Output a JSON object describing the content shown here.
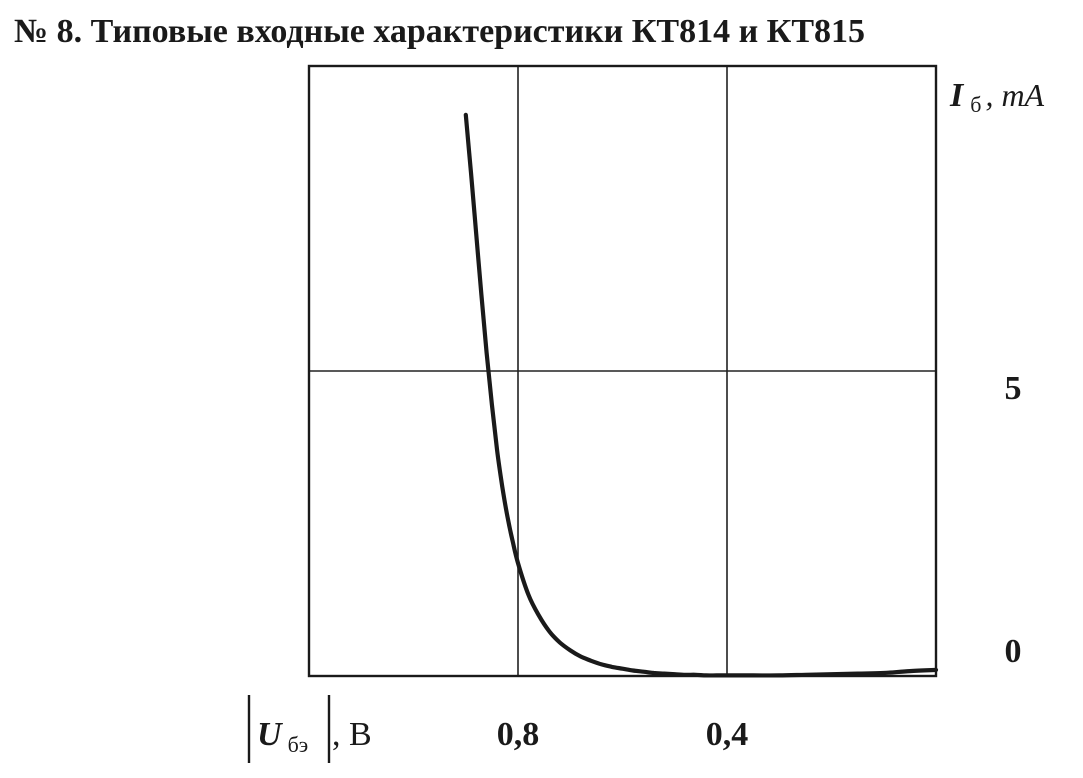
{
  "title": "№ 8.  Типовые входные характеристики КТ814 и КТ815",
  "chart_data": {
    "type": "line",
    "title": "№ 8.  Типовые входные характеристики КТ814 и КТ815",
    "xlabel": {
      "symbol": "U",
      "subscript": "бэ",
      "unit": ", В"
    },
    "ylabel": {
      "symbol": "I",
      "subscript": "б",
      "unit": ", mA"
    },
    "x_reversed": true,
    "xlim": [
      1.2,
      0.0
    ],
    "ylim": [
      0,
      10
    ],
    "x_ticks": [
      {
        "value": 0.8,
        "label": "0,8"
      },
      {
        "value": 0.4,
        "label": "0,4"
      }
    ],
    "y_ticks": [
      {
        "value": 5,
        "label": "5"
      },
      {
        "value": 0,
        "label": "0"
      }
    ],
    "grid": true,
    "series": [
      {
        "x": [
          0.9,
          0.89,
          0.88,
          0.87,
          0.86,
          0.85,
          0.84,
          0.83,
          0.82,
          0.81,
          0.8,
          0.78,
          0.76,
          0.74,
          0.72,
          0.7,
          0.68,
          0.66,
          0.64,
          0.62,
          0.6,
          0.58,
          0.56,
          0.54,
          0.52,
          0.5,
          0.48,
          0.46,
          0.44,
          0.42,
          0.4,
          0.35,
          0.3,
          0.25,
          0.2,
          0.15,
          0.1,
          0.05,
          0.0
        ],
        "y": [
          9.2,
          8.25,
          7.25,
          6.25,
          5.3,
          4.45,
          3.7,
          3.1,
          2.6,
          2.2,
          1.85,
          1.33,
          0.99,
          0.73,
          0.55,
          0.42,
          0.32,
          0.25,
          0.19,
          0.15,
          0.12,
          0.09,
          0.07,
          0.05,
          0.04,
          0.03,
          0.02,
          0.02,
          0.01,
          0.01,
          0.01,
          0.01,
          0.01,
          0.02,
          0.03,
          0.04,
          0.05,
          0.08,
          0.1
        ]
      }
    ]
  }
}
